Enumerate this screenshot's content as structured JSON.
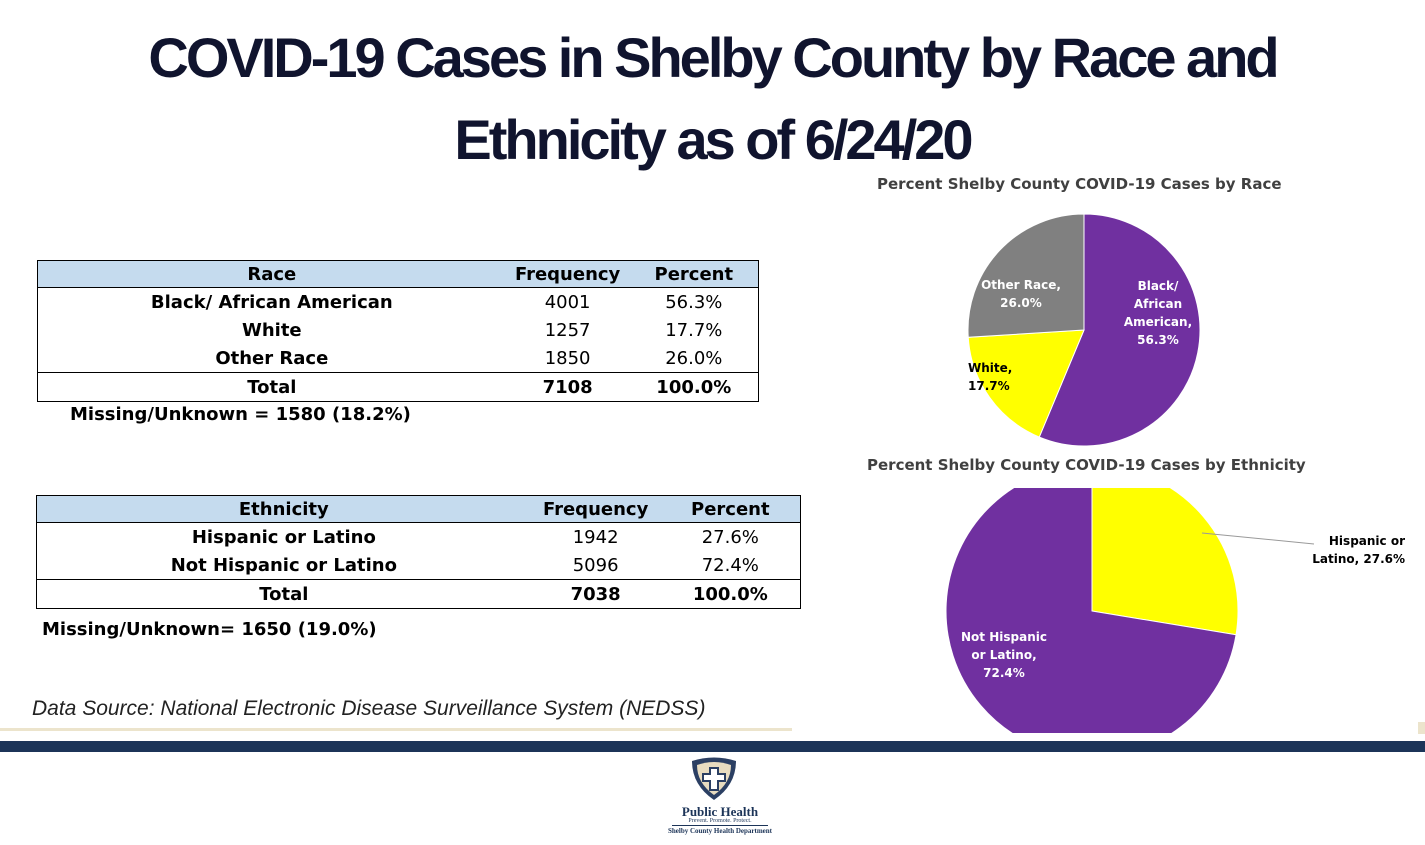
{
  "title": {
    "line1": "COVID-19 Cases in Shelby County by Race and",
    "line2": "Ethnicity as of 6/24/20"
  },
  "race_table": {
    "headers": [
      "Race",
      "Frequency",
      "Percent"
    ],
    "rows": [
      {
        "label": "Black/ African American",
        "frequency": "4001",
        "percent": "56.3%"
      },
      {
        "label": "White",
        "frequency": "1257",
        "percent": "17.7%"
      },
      {
        "label": "Other Race",
        "frequency": "1850",
        "percent": "26.0%"
      }
    ],
    "total": {
      "label": "Total",
      "frequency": "7108",
      "percent": "100.0%"
    },
    "missing": "Missing/Unknown = 1580 (18.2%)"
  },
  "ethnicity_table": {
    "headers": [
      "Ethnicity",
      "Frequency",
      "Percent"
    ],
    "rows": [
      {
        "label": "Hispanic or Latino",
        "frequency": "1942",
        "percent": "27.6%"
      },
      {
        "label": "Not Hispanic or Latino",
        "frequency": "5096",
        "percent": "72.4%"
      }
    ],
    "total": {
      "label": "Total",
      "frequency": "7038",
      "percent": "100.0%"
    },
    "missing": "Missing/Unknown= 1650 (19.0%)"
  },
  "data_source": "Data Source: National Electronic Disease Surveillance System (NEDSS)",
  "logo": {
    "name": "Public Health",
    "tagline": "Prevent. Promote. Protect.",
    "org": "Shelby County Health Department"
  },
  "colors": {
    "purple": "#7030a0",
    "yellow": "#ffff00",
    "gray": "#808080",
    "header_blue": "#c5dbee",
    "band": "#1c3458"
  },
  "chart_data": [
    {
      "type": "pie",
      "title": "Percent Shelby County COVID-19 Cases by Race",
      "slices": [
        {
          "label": "Black/ African American",
          "value": 56.3,
          "color": "#7030a0",
          "label_lines": [
            "Black/",
            "African",
            "American,",
            "56.3%"
          ]
        },
        {
          "label": "White",
          "value": 17.7,
          "color": "#ffff00",
          "label_lines": [
            "White,",
            "17.7%"
          ]
        },
        {
          "label": "Other Race",
          "value": 26.0,
          "color": "#808080",
          "label_lines": [
            "Other Race,",
            "26.0%"
          ]
        }
      ]
    },
    {
      "type": "pie",
      "title": "Percent Shelby County COVID-19 Cases by Ethnicity",
      "slices": [
        {
          "label": "Hispanic or Latino",
          "value": 27.6,
          "color": "#ffff00",
          "label_lines": [
            "Hispanic or",
            "Latino, 27.6%"
          ]
        },
        {
          "label": "Not Hispanic or Latino",
          "value": 72.4,
          "color": "#7030a0",
          "label_lines": [
            "Not Hispanic",
            "or Latino,",
            "72.4%"
          ]
        }
      ]
    }
  ]
}
